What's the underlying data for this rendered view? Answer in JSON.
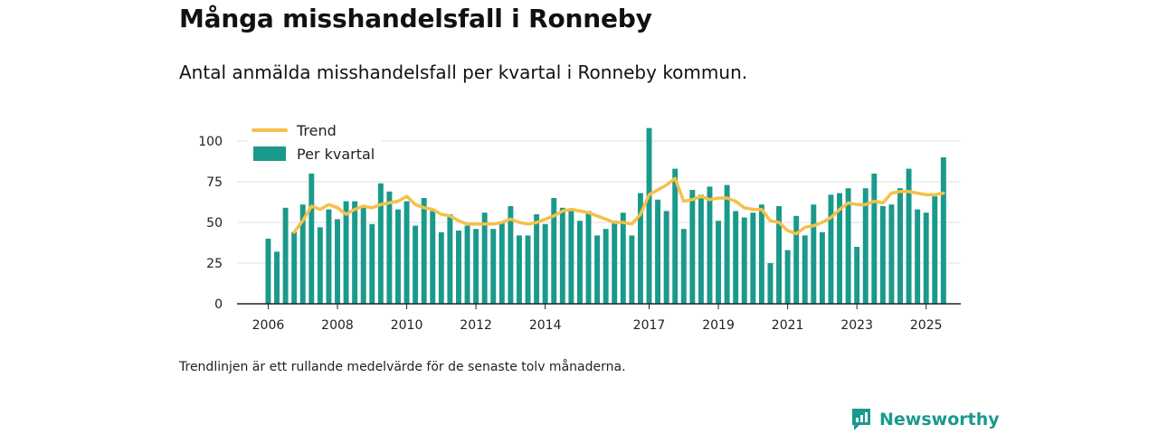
{
  "header": {
    "title": "Många misshandelsfall i Ronneby",
    "subtitle": "Antal anmälda misshandelsfall per kvartal i Ronneby kommun."
  },
  "footnote": "Trendlinjen är ett rullande medelvärde för de senaste tolv månaderna.",
  "brand": {
    "name": "Newsworthy",
    "color": "#1a9a8c"
  },
  "chart_data": {
    "type": "bar",
    "title": "Många misshandelsfall i Ronneby",
    "xlabel": "",
    "ylabel": "",
    "ylim": [
      0,
      110
    ],
    "yticks": [
      0,
      25,
      50,
      75,
      100
    ],
    "xticks": [
      {
        "label": "2006",
        "x": 2006
      },
      {
        "label": "2008",
        "x": 2008
      },
      {
        "label": "2010",
        "x": 2010
      },
      {
        "label": "2012",
        "x": 2012
      },
      {
        "label": "2014",
        "x": 2014
      },
      {
        "label": "2017",
        "x": 2017
      },
      {
        "label": "2019",
        "x": 2019
      },
      {
        "label": "2021",
        "x": 2021
      },
      {
        "label": "2023",
        "x": 2023
      },
      {
        "label": "2025",
        "x": 2025
      }
    ],
    "xlim": [
      2005.1,
      2026.0
    ],
    "colors": {
      "bars": "#1a9a8c",
      "trend": "#f5c04a",
      "grid": "#dddddd",
      "axis": "#222222"
    },
    "legend": {
      "position": "top-left",
      "trend_label": "Trend",
      "bars_label": "Per kvartal"
    },
    "series": [
      {
        "name": "Per kvartal",
        "type": "bar",
        "x_start": 2006.0,
        "step": 0.25,
        "values": [
          40,
          32,
          59,
          44,
          61,
          80,
          47,
          58,
          52,
          63,
          63,
          60,
          49,
          74,
          69,
          58,
          63,
          48,
          65,
          57,
          44,
          55,
          45,
          48,
          46,
          56,
          46,
          50,
          60,
          42,
          42,
          55,
          49,
          65,
          59,
          58,
          51,
          57,
          42,
          46,
          51,
          56,
          42,
          68,
          108,
          64,
          57,
          83,
          46,
          70,
          67,
          72,
          51,
          73,
          57,
          53,
          56,
          61,
          25,
          60,
          33,
          54,
          42,
          61,
          44,
          67,
          68,
          71,
          35,
          71,
          80,
          60,
          61,
          71,
          83,
          58,
          56,
          66,
          90
        ]
      },
      {
        "name": "Trend",
        "type": "line",
        "points": [
          [
            2006.75,
            44
          ],
          [
            2007.0,
            51
          ],
          [
            2007.25,
            60
          ],
          [
            2007.5,
            58
          ],
          [
            2007.75,
            61
          ],
          [
            2008.0,
            59
          ],
          [
            2008.25,
            55
          ],
          [
            2008.5,
            58
          ],
          [
            2008.75,
            60
          ],
          [
            2009.0,
            59
          ],
          [
            2009.25,
            61
          ],
          [
            2009.5,
            62
          ],
          [
            2009.75,
            63
          ],
          [
            2010.0,
            66
          ],
          [
            2010.25,
            61
          ],
          [
            2010.5,
            59
          ],
          [
            2010.75,
            58
          ],
          [
            2011.0,
            55
          ],
          [
            2011.25,
            54
          ],
          [
            2011.5,
            51
          ],
          [
            2011.75,
            49
          ],
          [
            2012.0,
            49
          ],
          [
            2012.25,
            49
          ],
          [
            2012.5,
            49
          ],
          [
            2012.75,
            50
          ],
          [
            2013.0,
            52
          ],
          [
            2013.25,
            50
          ],
          [
            2013.5,
            49
          ],
          [
            2013.75,
            50
          ],
          [
            2014.0,
            52
          ],
          [
            2014.25,
            54
          ],
          [
            2014.5,
            57
          ],
          [
            2014.75,
            58
          ],
          [
            2015.0,
            57
          ],
          [
            2015.25,
            56
          ],
          [
            2015.5,
            54
          ],
          [
            2015.75,
            52
          ],
          [
            2016.0,
            50
          ],
          [
            2016.25,
            50
          ],
          [
            2016.5,
            49
          ],
          [
            2016.75,
            55
          ],
          [
            2017.0,
            67
          ],
          [
            2017.25,
            70
          ],
          [
            2017.5,
            73
          ],
          [
            2017.75,
            77
          ],
          [
            2018.0,
            63
          ],
          [
            2018.25,
            64
          ],
          [
            2018.5,
            66
          ],
          [
            2018.75,
            64
          ],
          [
            2019.0,
            65
          ],
          [
            2019.25,
            65
          ],
          [
            2019.5,
            63
          ],
          [
            2019.75,
            59
          ],
          [
            2020.0,
            58
          ],
          [
            2020.25,
            58
          ],
          [
            2020.5,
            51
          ],
          [
            2020.75,
            50
          ],
          [
            2021.0,
            45
          ],
          [
            2021.25,
            43
          ],
          [
            2021.5,
            47
          ],
          [
            2021.75,
            48
          ],
          [
            2022.0,
            50
          ],
          [
            2022.25,
            53
          ],
          [
            2022.5,
            58
          ],
          [
            2022.75,
            62
          ],
          [
            2023.0,
            61
          ],
          [
            2023.25,
            61
          ],
          [
            2023.5,
            63
          ],
          [
            2023.75,
            62
          ],
          [
            2024.0,
            68
          ],
          [
            2024.25,
            69
          ],
          [
            2024.5,
            69
          ],
          [
            2024.75,
            68
          ],
          [
            2025.0,
            67
          ],
          [
            2025.25,
            67
          ],
          [
            2025.5,
            68
          ]
        ]
      }
    ]
  }
}
